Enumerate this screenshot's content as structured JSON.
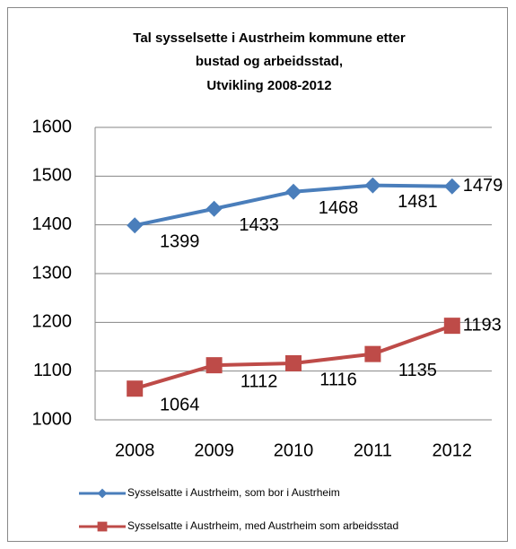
{
  "chart_data": {
    "type": "line",
    "title": [
      "Tal sysselsette i Austrheim kommune etter",
      "bustad og arbeidsstad,",
      "Utvikling 2008-2012"
    ],
    "categories": [
      "2008",
      "2009",
      "2010",
      "2011",
      "2012"
    ],
    "series": [
      {
        "name": "Sysselsatte i Austrheim, som bor i Austrheim",
        "color": "#4a7ebb",
        "marker": "diamond",
        "values": [
          1399,
          1433,
          1468,
          1481,
          1479
        ]
      },
      {
        "name": "Sysselsatte i Austrheim, med Austrheim som arbeidsstad",
        "color": "#be4b48",
        "marker": "square",
        "values": [
          1064,
          1112,
          1116,
          1135,
          1193
        ]
      }
    ],
    "ylim": [
      1000,
      1600
    ],
    "yticks": [
      1000,
      1100,
      1200,
      1300,
      1400,
      1500,
      1600
    ],
    "grid": true,
    "legend": "bottom"
  }
}
